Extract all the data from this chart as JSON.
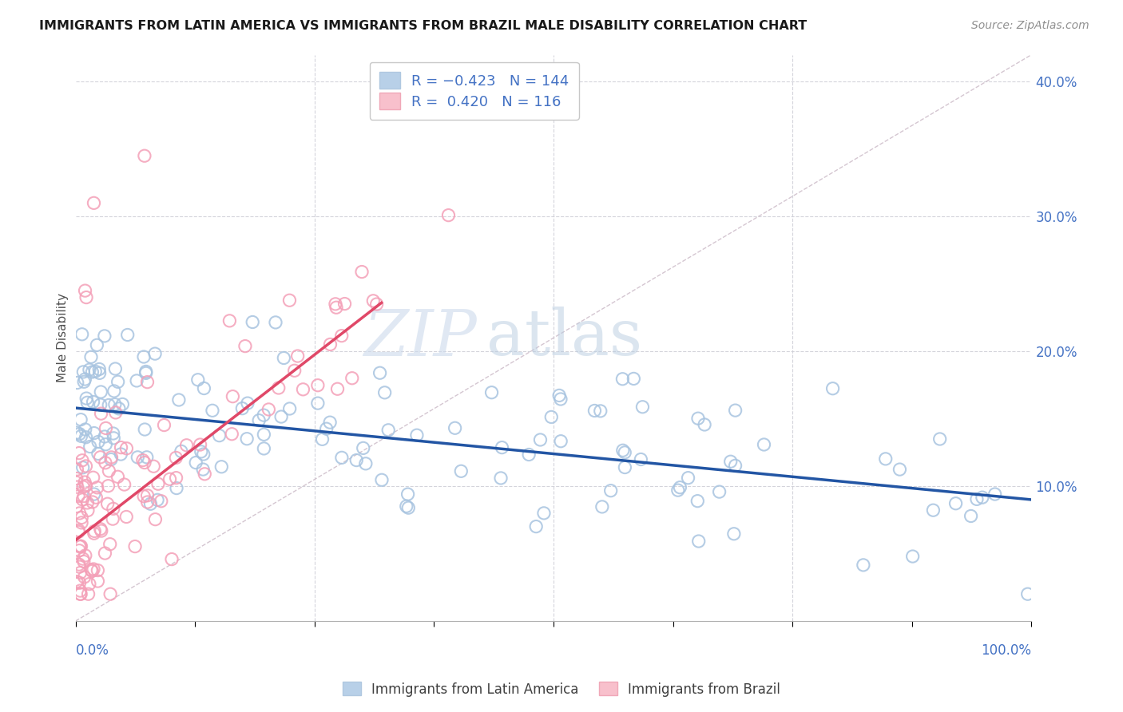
{
  "title": "IMMIGRANTS FROM LATIN AMERICA VS IMMIGRANTS FROM BRAZIL MALE DISABILITY CORRELATION CHART",
  "source": "Source: ZipAtlas.com",
  "ylabel": "Male Disability",
  "legend_blue_label": "R = -0.423   N = 144",
  "legend_pink_label": "R =  0.420   N = 116",
  "legend_label_blue": "Immigrants from Latin America",
  "legend_label_pink": "Immigrants from Brazil",
  "xlim": [
    0.0,
    1.0
  ],
  "ylim": [
    0.0,
    0.42
  ],
  "yticks": [
    0.1,
    0.2,
    0.3,
    0.4
  ],
  "ytick_labels": [
    "10.0%",
    "20.0%",
    "30.0%",
    "40.0%"
  ],
  "blue_scatter_color": "#a8c4e0",
  "pink_scatter_color": "#f4a0b8",
  "blue_line_color": "#2255a4",
  "pink_line_color": "#e04868",
  "diagonal_color": "#d0c0cc",
  "grid_color": "#d0d0d8",
  "title_color": "#1a1a1a",
  "axis_label_color": "#4472c4",
  "watermark_color": "#ccdaec",
  "blue_scatter_edge": "#90b4d8",
  "pink_scatter_edge": "#e888a0",
  "seed": 2023,
  "n_blue": 144,
  "n_pink": 116,
  "blue_slope": -0.068,
  "blue_intercept": 0.158,
  "pink_slope_vis": 0.55,
  "pink_intercept": 0.06,
  "pink_line_x_start": 0.0,
  "pink_line_x_end": 0.32
}
